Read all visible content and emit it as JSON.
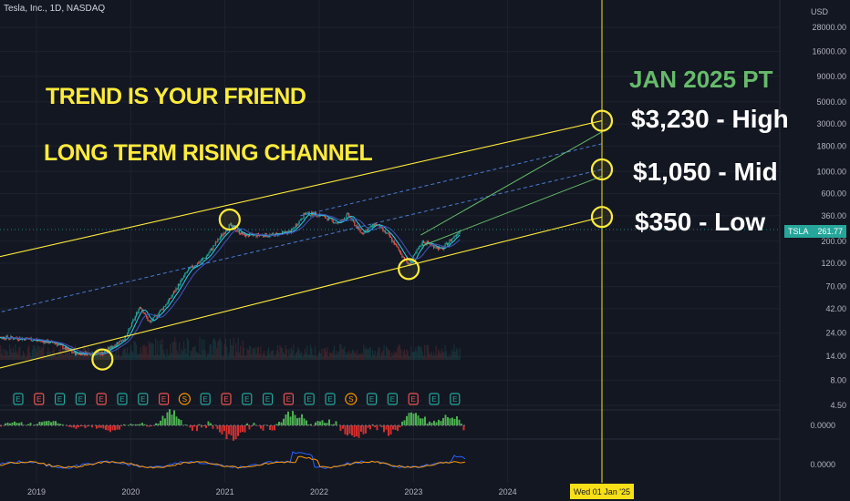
{
  "header": {
    "symbol_line": "Tesla, Inc., 1D, NASDAQ"
  },
  "currency": "USD",
  "last_price": {
    "symbol": "TSLA",
    "value": "261.77"
  },
  "crosshair_date": "Wed 01 Jan '25",
  "annotations": {
    "trend": "TREND IS YOUR FRIEND",
    "channel": "LONG TERM RISING CHANNEL",
    "pt_title": "JAN 2025 PT",
    "high": "$3,230 - High",
    "mid": "$1,050 - Mid",
    "low": "$350 - Low"
  },
  "colors": {
    "background": "#131722",
    "channel_line": "#ffeb3b",
    "target_line": "#66bb6a",
    "mid_line": "#4a7bd0",
    "up": "#26a69a",
    "down": "#ef5350",
    "earnings": "#26a69a",
    "earnings_miss": "#ef5350",
    "split": "#ff9800"
  },
  "chart_data": {
    "type": "candlestick",
    "symbol": "TSLA",
    "timeframe": "1D",
    "exchange": "NASDAQ",
    "y_scale": "log",
    "y_ticks": [
      "28000.00",
      "16000.00",
      "9000.00",
      "5000.00",
      "3000.00",
      "1800.00",
      "1000.00",
      "600.00",
      "360.00",
      "200.00",
      "120.00",
      "70.00",
      "42.00",
      "24.00",
      "14.00",
      "8.00",
      "4.50"
    ],
    "x_ticks": [
      "2019",
      "2020",
      "2021",
      "2022",
      "2023",
      "2024"
    ],
    "price_path": [
      [
        "2018.5",
        22
      ],
      [
        "2018.9",
        21
      ],
      [
        "2019.2",
        19
      ],
      [
        "2019.4",
        15
      ],
      [
        "2019.7",
        15
      ],
      [
        "2019.95",
        22
      ],
      [
        "2020.1",
        45
      ],
      [
        "2020.2",
        30
      ],
      [
        "2020.4",
        50
      ],
      [
        "2020.6",
        100
      ],
      [
        "2020.8",
        140
      ],
      [
        "2020.95",
        220
      ],
      [
        "2021.05",
        290
      ],
      [
        "2021.2",
        230
      ],
      [
        "2021.5",
        230
      ],
      [
        "2021.7",
        250
      ],
      [
        "2021.85",
        380
      ],
      [
        "2022.0",
        370
      ],
      [
        "2022.2",
        300
      ],
      [
        "2022.3",
        370
      ],
      [
        "2022.45",
        240
      ],
      [
        "2022.6",
        300
      ],
      [
        "2022.75",
        220
      ],
      [
        "2022.95",
        115
      ],
      [
        "2023.1",
        200
      ],
      [
        "2023.3",
        165
      ],
      [
        "2023.5",
        261.77
      ]
    ],
    "channel": {
      "upper_start": [
        "2019.25",
        130
      ],
      "upper_end": [
        "2025.0",
        3230
      ],
      "lower_start": [
        "2019.25",
        9
      ],
      "lower_end": [
        "2025.0",
        350
      ],
      "mid_end": [
        "2025.0",
        1050
      ]
    },
    "price_targets": [
      {
        "label": "$3,230 - High",
        "value": 3230
      },
      {
        "label": "$1,050 - Mid",
        "value": 1050
      },
      {
        "label": "$350 - Low",
        "value": 350
      }
    ],
    "event_markers": [
      "E",
      "E",
      "E",
      "E",
      "E",
      "E",
      "E",
      "E",
      "S",
      "E",
      "E",
      "E",
      "E",
      "E",
      "E",
      "E",
      "S",
      "E",
      "E",
      "E",
      "E",
      "E"
    ],
    "oscillator1_zero": "0.0000",
    "oscillator2_zero": "0.0000"
  }
}
